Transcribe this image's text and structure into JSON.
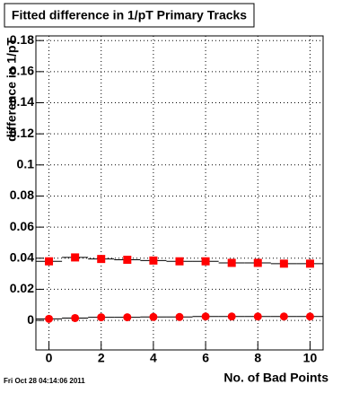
{
  "chart_data": {
    "type": "scatter",
    "title": "Fitted difference in 1/pT Primary Tracks",
    "x_label": "No. of Bad Points",
    "y_label": "difference in 1/pT",
    "timestamp": "Fri Oct 28 04:14:06 2011",
    "x": [
      0,
      1,
      2,
      3,
      4,
      5,
      6,
      7,
      8,
      9,
      10
    ],
    "series": [
      {
        "color": "#ff0000",
        "marker": "square",
        "values": [
          0.038,
          0.0405,
          0.0395,
          0.039,
          0.0385,
          0.038,
          0.038,
          0.037,
          0.037,
          0.0365,
          0.0365
        ]
      },
      {
        "color": "#ff0000",
        "marker": "circle",
        "values": [
          0.001,
          0.0015,
          0.002,
          0.002,
          0.0022,
          0.0022,
          0.0025,
          0.0025,
          0.0025,
          0.0025,
          0.0025
        ]
      }
    ],
    "xlim": [
      -0.5,
      10.5
    ],
    "ylim": [
      -0.019,
      0.183
    ],
    "xticks": [
      0,
      2,
      4,
      6,
      8,
      10
    ],
    "yticks": [
      0,
      0.02,
      0.04,
      0.06,
      0.08,
      0.1,
      0.12,
      0.14,
      0.16,
      0.18
    ],
    "grid": true
  }
}
